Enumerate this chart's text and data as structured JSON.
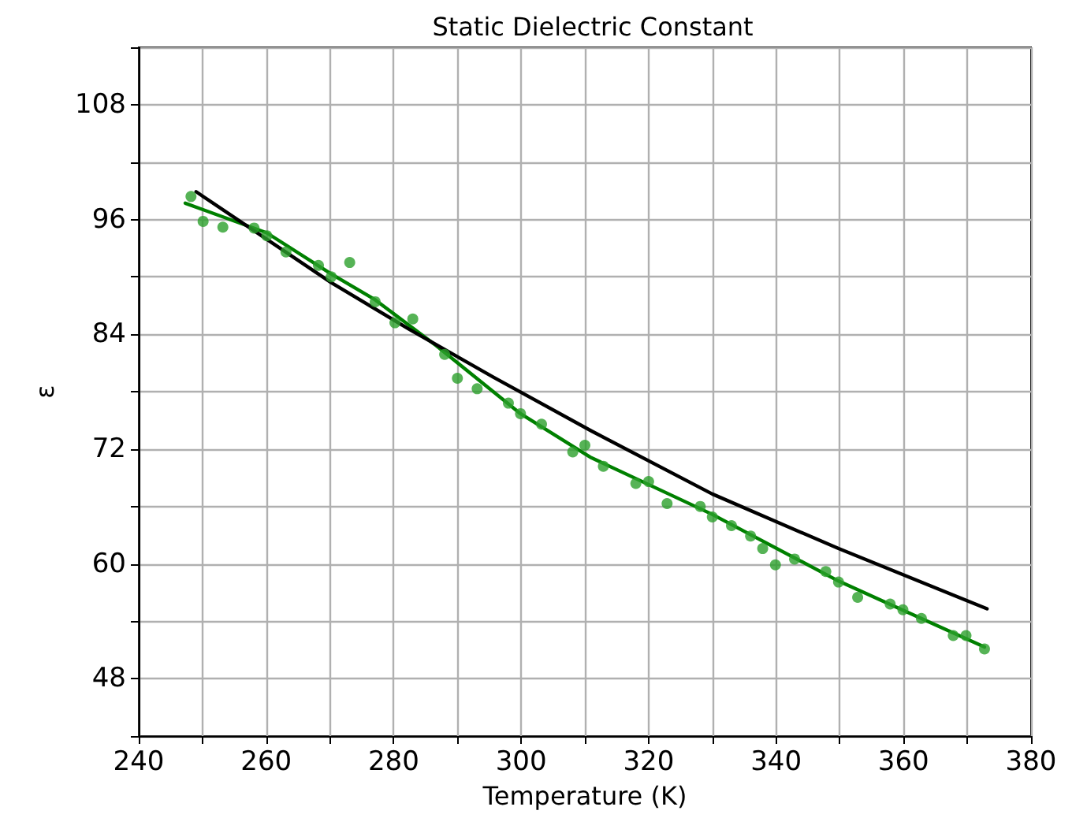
{
  "chart_data": {
    "type": "scatter",
    "title": "Static Dielectric Constant",
    "xlabel": "Temperature (K)",
    "ylabel": "ε",
    "xlim": [
      240,
      380
    ],
    "xticks": [
      240,
      {
        "value": 250,
        "label": null
      },
      260,
      {
        "value": 270,
        "label": null
      },
      280,
      {
        "value": 290,
        "label": null
      },
      300,
      {
        "value": 310,
        "label": null
      },
      320,
      {
        "value": 330,
        "label": null
      },
      340,
      {
        "value": 350,
        "label": null
      },
      360,
      {
        "value": 370,
        "label": null
      },
      380
    ],
    "ylim": [
      42,
      114
    ],
    "yticks": [
      {
        "value": 42,
        "label": null
      },
      48,
      {
        "value": 54,
        "label": null
      },
      60,
      {
        "value": 66,
        "label": null
      },
      72,
      {
        "value": 78,
        "label": null
      },
      84,
      {
        "value": 90,
        "label": null
      },
      96,
      {
        "value": 102,
        "label": null
      },
      108,
      {
        "value": 114,
        "label": null
      }
    ],
    "grid": true,
    "series": [
      {
        "marker": "circle",
        "color": "#2ca02c",
        "x": [
          248.2,
          250.1,
          253.2,
          258.1,
          260.1,
          263.1,
          268.2,
          270.2,
          273.1,
          277.1,
          280.2,
          283.0,
          288.0,
          290.0,
          293.1,
          298.0,
          299.9,
          303.2,
          308.1,
          310.0,
          312.9,
          318.0,
          320.0,
          322.9,
          328.1,
          330.0,
          333.0,
          336.0,
          337.9,
          339.9,
          342.9,
          347.8,
          349.8,
          352.8,
          357.9,
          359.9,
          362.8,
          367.8,
          369.8,
          372.7
        ],
        "values": [
          98.4,
          95.8,
          95.2,
          95.1,
          94.3,
          92.6,
          91.2,
          90.0,
          91.5,
          87.4,
          85.2,
          85.6,
          81.9,
          79.4,
          78.3,
          76.8,
          75.7,
          74.6,
          71.7,
          72.4,
          70.2,
          68.4,
          68.6,
          66.3,
          66.0,
          64.9,
          64.0,
          62.9,
          61.6,
          59.9,
          60.5,
          59.2,
          58.1,
          56.5,
          55.8,
          55.2,
          54.3,
          52.5,
          52.5,
          51.1
        ]
      },
      {
        "type": "line",
        "marker": "none",
        "line_style": "solid",
        "color": "#008000",
        "x": [
          247.3,
          260.1,
          270.2,
          277.1,
          286.7,
          299.9,
          311.0,
          329.9,
          349.8,
          372.7
        ],
        "values": [
          97.7,
          94.6,
          90.3,
          87.6,
          82.8,
          75.7,
          71.1,
          65.2,
          58.2,
          51.3
        ]
      },
      {
        "type": "line",
        "marker": "none",
        "line_style": "solid",
        "color": "#000000",
        "x": [
          249.0,
          270.2,
          282.5,
          295.7,
          311.0,
          330.0,
          349.8,
          373.1
        ],
        "values": [
          98.9,
          89.4,
          84.5,
          79.5,
          73.9,
          67.3,
          61.6,
          55.3
        ]
      }
    ]
  }
}
